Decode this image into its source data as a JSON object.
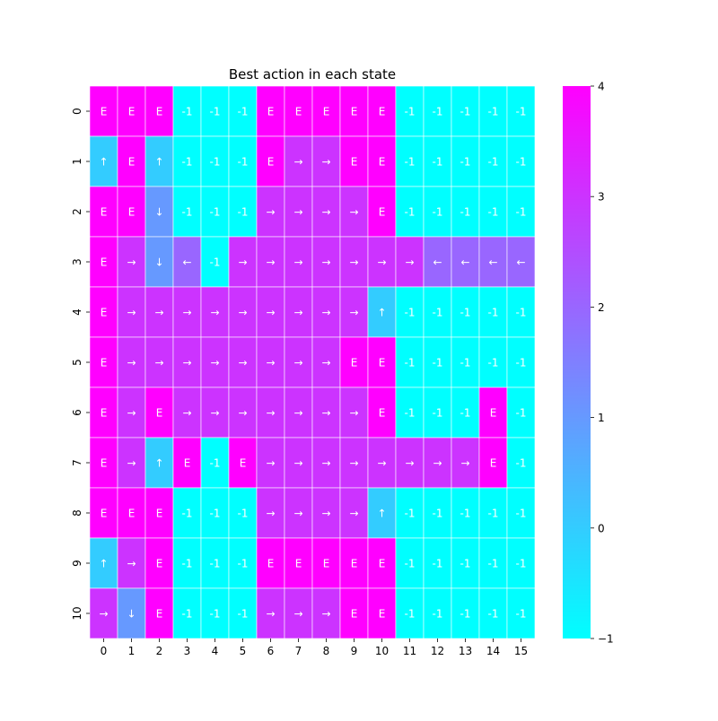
{
  "chart_data": {
    "type": "heatmap",
    "title": "Best action in each state",
    "xlabel": "",
    "ylabel": "",
    "x_ticks": [
      "0",
      "1",
      "2",
      "3",
      "4",
      "5",
      "6",
      "7",
      "8",
      "9",
      "10",
      "11",
      "12",
      "13",
      "14",
      "15"
    ],
    "y_ticks": [
      "0",
      "1",
      "2",
      "3",
      "4",
      "5",
      "6",
      "7",
      "8",
      "9",
      "10"
    ],
    "colormap": "cool",
    "colors": {
      "min": "#00ffff",
      "max": "#ff00ff",
      "grid_line": "#ffffff",
      "label_text": "#ffffff"
    },
    "vmin": -1,
    "vmax": 4,
    "colorbar_ticks": [
      -1,
      0,
      1,
      2,
      3,
      4
    ],
    "colorbar_tick_labels": [
      "−1",
      "0",
      "1",
      "2",
      "3",
      "4"
    ],
    "values": [
      [
        4,
        4,
        4,
        -1,
        -1,
        -1,
        4,
        4,
        4,
        4,
        4,
        -1,
        -1,
        -1,
        -1,
        -1
      ],
      [
        0,
        4,
        0,
        -1,
        -1,
        -1,
        4,
        3,
        3,
        4,
        4,
        -1,
        -1,
        -1,
        -1,
        -1
      ],
      [
        4,
        4,
        1,
        -1,
        -1,
        -1,
        3,
        3,
        3,
        3,
        4,
        -1,
        -1,
        -1,
        -1,
        -1
      ],
      [
        4,
        3,
        1,
        2,
        -1,
        3,
        3,
        3,
        3,
        3,
        3,
        3,
        2,
        2,
        2,
        2
      ],
      [
        4,
        3,
        3,
        3,
        3,
        3,
        3,
        3,
        3,
        3,
        0,
        -1,
        -1,
        -1,
        -1,
        -1
      ],
      [
        4,
        3,
        3,
        3,
        3,
        3,
        3,
        3,
        3,
        4,
        4,
        -1,
        -1,
        -1,
        -1,
        -1
      ],
      [
        4,
        3,
        4,
        3,
        3,
        3,
        3,
        3,
        3,
        3,
        4,
        -1,
        -1,
        -1,
        4,
        -1
      ],
      [
        4,
        3,
        0,
        4,
        -1,
        4,
        3,
        3,
        3,
        3,
        3,
        3,
        3,
        3,
        4,
        -1
      ],
      [
        4,
        4,
        4,
        -1,
        -1,
        -1,
        3,
        3,
        3,
        3,
        0,
        -1,
        -1,
        -1,
        -1,
        -1
      ],
      [
        0,
        3,
        4,
        -1,
        -1,
        -1,
        4,
        4,
        4,
        4,
        4,
        -1,
        -1,
        -1,
        -1,
        -1
      ],
      [
        3,
        1,
        4,
        -1,
        -1,
        -1,
        3,
        3,
        3,
        4,
        4,
        -1,
        -1,
        -1,
        -1,
        -1
      ]
    ],
    "annotations": [
      [
        "E",
        "E",
        "E",
        "-1",
        "-1",
        "-1",
        "E",
        "E",
        "E",
        "E",
        "E",
        "-1",
        "-1",
        "-1",
        "-1",
        "-1"
      ],
      [
        "↑",
        "E",
        "↑",
        "-1",
        "-1",
        "-1",
        "E",
        "→",
        "→",
        "E",
        "E",
        "-1",
        "-1",
        "-1",
        "-1",
        "-1"
      ],
      [
        "E",
        "E",
        "↓",
        "-1",
        "-1",
        "-1",
        "→",
        "→",
        "→",
        "→",
        "E",
        "-1",
        "-1",
        "-1",
        "-1",
        "-1"
      ],
      [
        "E",
        "→",
        "↓",
        "←",
        "-1",
        "→",
        "→",
        "→",
        "→",
        "→",
        "→",
        "→",
        "←",
        "←",
        "←",
        "←"
      ],
      [
        "E",
        "→",
        "→",
        "→",
        "→",
        "→",
        "→",
        "→",
        "→",
        "→",
        "↑",
        "-1",
        "-1",
        "-1",
        "-1",
        "-1"
      ],
      [
        "E",
        "→",
        "→",
        "→",
        "→",
        "→",
        "→",
        "→",
        "→",
        "E",
        "E",
        "-1",
        "-1",
        "-1",
        "-1",
        "-1"
      ],
      [
        "E",
        "→",
        "E",
        "→",
        "→",
        "→",
        "→",
        "→",
        "→",
        "→",
        "E",
        "-1",
        "-1",
        "-1",
        "E",
        "-1"
      ],
      [
        "E",
        "→",
        "↑",
        "E",
        "-1",
        "E",
        "→",
        "→",
        "→",
        "→",
        "→",
        "→",
        "→",
        "→",
        "E",
        "-1"
      ],
      [
        "E",
        "E",
        "E",
        "-1",
        "-1",
        "-1",
        "→",
        "→",
        "→",
        "→",
        "↑",
        "-1",
        "-1",
        "-1",
        "-1",
        "-1"
      ],
      [
        "↑",
        "→",
        "E",
        "-1",
        "-1",
        "-1",
        "E",
        "E",
        "E",
        "E",
        "E",
        "-1",
        "-1",
        "-1",
        "-1",
        "-1"
      ],
      [
        "→",
        "↓",
        "E",
        "-1",
        "-1",
        "-1",
        "→",
        "→",
        "→",
        "E",
        "E",
        "-1",
        "-1",
        "-1",
        "-1",
        "-1"
      ]
    ]
  }
}
